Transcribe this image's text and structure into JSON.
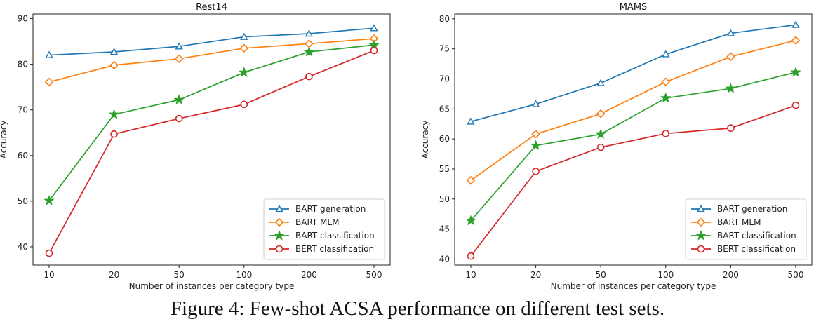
{
  "figure": {
    "caption": "Figure 4: Few-shot ACSA performance on different test sets."
  },
  "chart_data": [
    {
      "type": "line",
      "title": "Rest14",
      "xlabel": "Number of instances per category type",
      "ylabel": "Accuracy",
      "categories": [
        "10",
        "20",
        "50",
        "100",
        "200",
        "500"
      ],
      "ylim": [
        36,
        91
      ],
      "yticks": [
        40,
        50,
        60,
        70,
        80,
        90
      ],
      "legend_position": "lower-right",
      "series": [
        {
          "name": "BART generation",
          "values": [
            82.0,
            82.7,
            83.9,
            86.0,
            86.7,
            87.9
          ],
          "color": "#1f77b4",
          "marker": "triangle"
        },
        {
          "name": "BART MLM",
          "values": [
            76.1,
            79.8,
            81.2,
            83.5,
            84.5,
            85.6
          ],
          "color": "#ff7f0e",
          "marker": "diamond"
        },
        {
          "name": "BART classification",
          "values": [
            50.1,
            69.0,
            72.2,
            78.2,
            82.7,
            84.2
          ],
          "color": "#2ca02c",
          "marker": "star"
        },
        {
          "name": "BERT classification",
          "values": [
            38.6,
            64.7,
            68.1,
            71.2,
            77.3,
            83.0
          ],
          "color": "#d62728",
          "marker": "circle"
        }
      ]
    },
    {
      "type": "line",
      "title": "MAMS",
      "xlabel": "Number of instances per category type",
      "ylabel": "Accuracy",
      "categories": [
        "10",
        "20",
        "50",
        "100",
        "200",
        "500"
      ],
      "ylim": [
        39,
        80.8
      ],
      "yticks": [
        40,
        45,
        50,
        55,
        60,
        65,
        70,
        75,
        80
      ],
      "legend_position": "lower-right",
      "series": [
        {
          "name": "BART generation",
          "values": [
            62.9,
            65.8,
            69.3,
            74.1,
            77.6,
            79.0
          ],
          "color": "#1f77b4",
          "marker": "triangle"
        },
        {
          "name": "BART MLM",
          "values": [
            53.1,
            60.8,
            64.2,
            69.5,
            73.7,
            76.4
          ],
          "color": "#ff7f0e",
          "marker": "diamond"
        },
        {
          "name": "BART classification",
          "values": [
            46.4,
            58.9,
            60.8,
            66.8,
            68.4,
            71.1
          ],
          "color": "#2ca02c",
          "marker": "star"
        },
        {
          "name": "BERT classification",
          "values": [
            40.5,
            54.6,
            58.6,
            60.9,
            61.8,
            65.6
          ],
          "color": "#d62728",
          "marker": "circle"
        }
      ]
    }
  ]
}
